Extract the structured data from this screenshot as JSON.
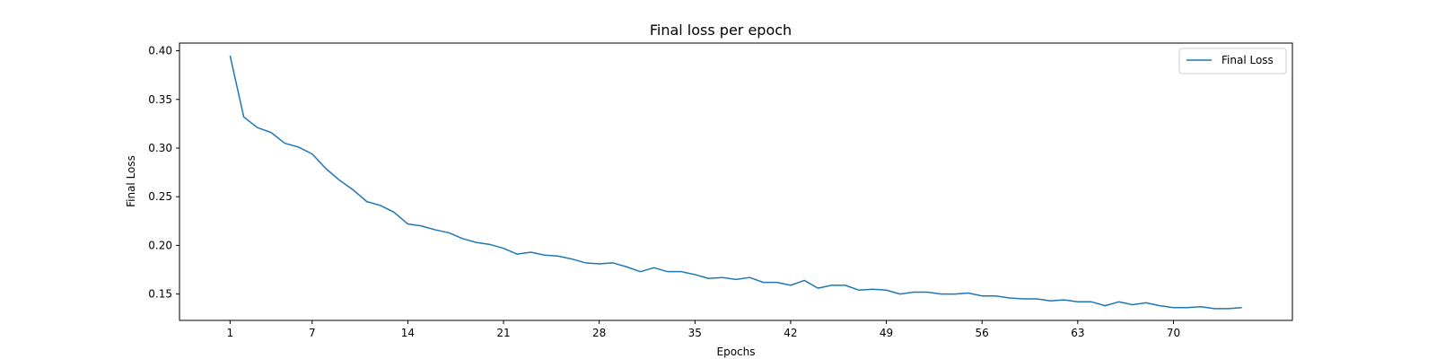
{
  "chart_data": {
    "type": "line",
    "title": "Final loss per epoch",
    "xlabel": "Epochs",
    "ylabel": "Final Loss",
    "xlim": [
      -2.7,
      78.7
    ],
    "ylim": [
      0.1229,
      0.4079
    ],
    "xticks": [
      1,
      7,
      14,
      21,
      28,
      35,
      42,
      49,
      56,
      63,
      70
    ],
    "xtick_labels": [
      "1",
      "7",
      "14",
      "21",
      "28",
      "35",
      "42",
      "49",
      "56",
      "63",
      "70"
    ],
    "yticks": [
      0.15,
      0.2,
      0.25,
      0.3,
      0.35,
      0.4
    ],
    "ytick_labels": [
      "0.15",
      "0.20",
      "0.25",
      "0.30",
      "0.35",
      "0.40"
    ],
    "grid": false,
    "legend_position": "top-right",
    "series": [
      {
        "name": "Final Loss",
        "color": "#1f77b4",
        "x": [
          1,
          2,
          3,
          4,
          5,
          6,
          7,
          8,
          9,
          10,
          11,
          12,
          13,
          14,
          15,
          16,
          17,
          18,
          19,
          20,
          21,
          22,
          23,
          24,
          25,
          26,
          27,
          28,
          29,
          30,
          31,
          32,
          33,
          34,
          35,
          36,
          37,
          38,
          39,
          40,
          41,
          42,
          43,
          44,
          45,
          46,
          47,
          48,
          49,
          50,
          51,
          52,
          53,
          54,
          55,
          56,
          57,
          58,
          59,
          60,
          61,
          62,
          63,
          64,
          65,
          66,
          67,
          68,
          69,
          70,
          71,
          72,
          73,
          74,
          75
        ],
        "y": [
          0.395,
          0.332,
          0.321,
          0.316,
          0.305,
          0.301,
          0.294,
          0.279,
          0.267,
          0.257,
          0.245,
          0.241,
          0.234,
          0.222,
          0.22,
          0.216,
          0.213,
          0.207,
          0.203,
          0.201,
          0.197,
          0.191,
          0.193,
          0.19,
          0.189,
          0.186,
          0.182,
          0.181,
          0.182,
          0.178,
          0.173,
          0.177,
          0.173,
          0.173,
          0.17,
          0.166,
          0.167,
          0.165,
          0.167,
          0.162,
          0.162,
          0.159,
          0.164,
          0.156,
          0.159,
          0.159,
          0.154,
          0.155,
          0.154,
          0.15,
          0.152,
          0.152,
          0.15,
          0.15,
          0.151,
          0.148,
          0.148,
          0.146,
          0.145,
          0.145,
          0.143,
          0.144,
          0.142,
          0.142,
          0.138,
          0.142,
          0.139,
          0.141,
          0.138,
          0.136,
          0.136,
          0.137,
          0.135,
          0.135,
          0.136
        ]
      }
    ]
  }
}
